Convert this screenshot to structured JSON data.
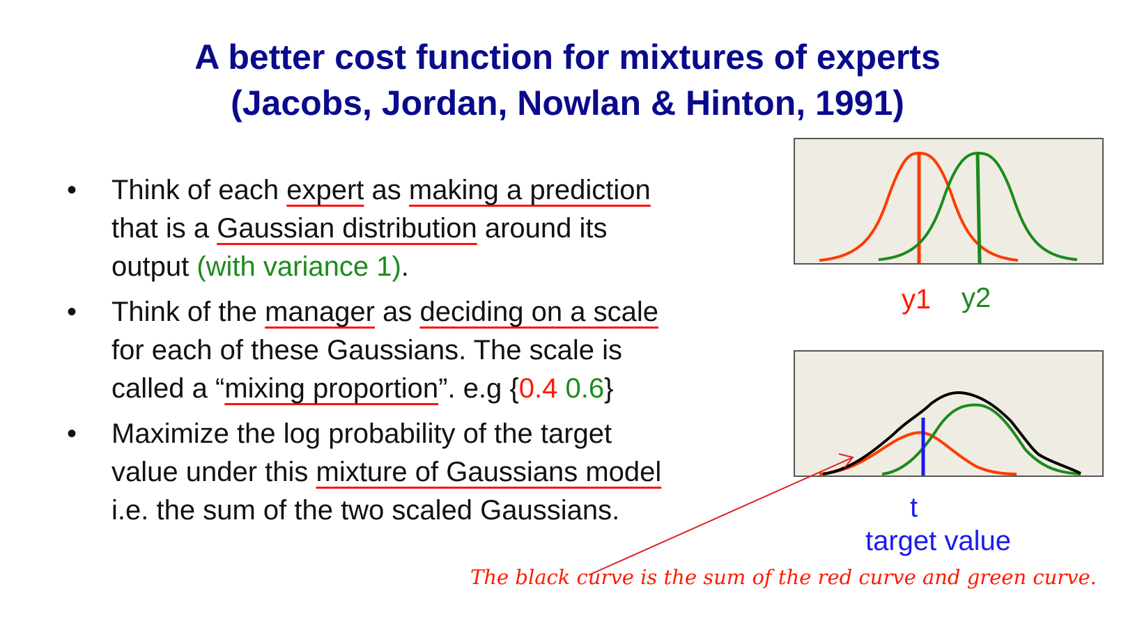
{
  "title": {
    "line1": "A better cost function for mixtures of experts",
    "line2": "(Jacobs, Jordan, Nowlan & Hinton, 1991)"
  },
  "bullets": [
    {
      "marker": "•",
      "line1": {
        "t1": "Think of each ",
        "u1": "expert",
        "t2": " as ",
        "u2": "making a prediction"
      },
      "line2": {
        "t1": "that is a ",
        "u1": "Gaussian distribution",
        "t2": " around its"
      },
      "line3": {
        "t1": "output ",
        "green": "(with variance 1)",
        "t2": "."
      }
    },
    {
      "marker": "•",
      "line1": {
        "t1": "Think of the ",
        "u1": "manager",
        "t2": " as ",
        "u2": "deciding on a scale"
      },
      "line2": {
        "t1": "for each of these Gaussians. The scale is"
      },
      "line3": {
        "t1": "called a “",
        "u1": "mixing proportion",
        "t2": "”. e.g {",
        "red": "0.4",
        "sp": " ",
        "green": "0.6",
        "t3": "}"
      }
    },
    {
      "marker": "•",
      "line1": {
        "t1": "Maximize the log probability of the target"
      },
      "line2": {
        "t1": "value under this ",
        "u1": "mixture of Gaussians model"
      },
      "line3": {
        "t1": "i.e. the sum of the two scaled Gaussians."
      }
    }
  ],
  "diagram": {
    "label_y1": "y1",
    "label_y2": "y2",
    "label_t": "t",
    "label_target": "target value",
    "caption": "The black curve is the sum of the red curve and green curve.",
    "colors": {
      "expert1": "#ff3a00",
      "expert2": "#1c8a1c",
      "mixture": "#000000",
      "target": "#1a1aee",
      "panel": "#efede3",
      "arrow": "#e02020"
    }
  }
}
